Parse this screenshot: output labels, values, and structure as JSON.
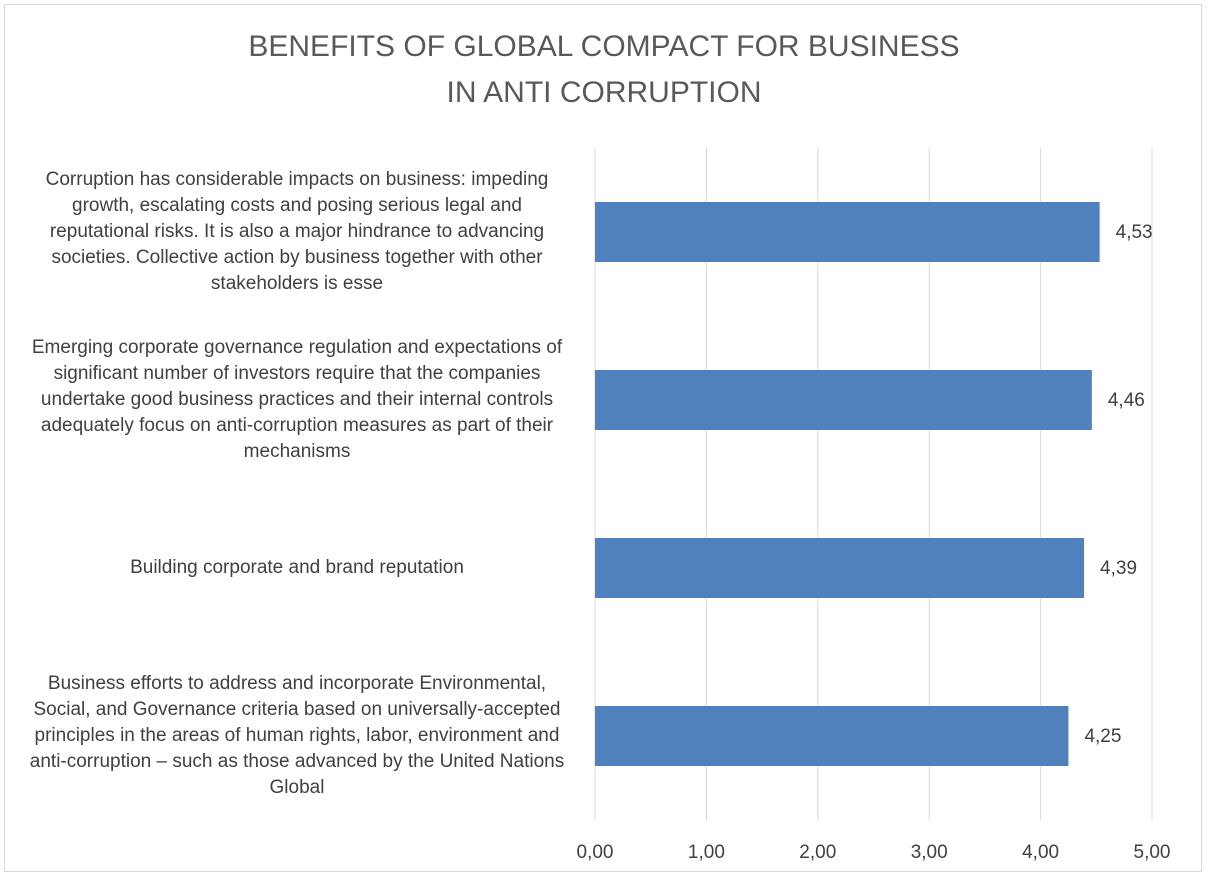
{
  "chart_data": {
    "type": "barh",
    "title": [
      "BENEFITS OF GLOBAL COMPACT FOR BUSINESS",
      "IN ANTI CORRUPTION"
    ],
    "categories": [
      "Corruption has considerable impacts on business: impeding growth, escalating costs and posing serious legal and reputational risks. It is also a major hindrance to advancing societies. Collective action by business together with other stakeholders is esse",
      "Emerging corporate governance regulation and expectations of significant number of investors require that the companies undertake good business practices and their internal controls adequately focus on anti-corruption measures as part of their mechanisms",
      "Building corporate and brand reputation",
      "Business efforts to address and incorporate Environmental, Social, and Governance criteria based on universally-accepted principles in the areas of human rights, labor, environment and anti-corruption – such as those advanced by the United Nations Global"
    ],
    "values": [
      4.53,
      4.46,
      4.39,
      4.25
    ],
    "value_labels": [
      "4,53",
      "4,46",
      "4,39",
      "4,25"
    ],
    "color": "#4f81bd",
    "xlim": [
      0,
      5
    ],
    "xticks": [
      {
        "value": 0,
        "label": "0,00"
      },
      {
        "value": 1,
        "label": "1,00"
      },
      {
        "value": 2,
        "label": "2,00"
      },
      {
        "value": 3,
        "label": "3,00"
      },
      {
        "value": 4,
        "label": "4,00"
      },
      {
        "value": 5,
        "label": "5,00"
      }
    ],
    "grid": true
  }
}
